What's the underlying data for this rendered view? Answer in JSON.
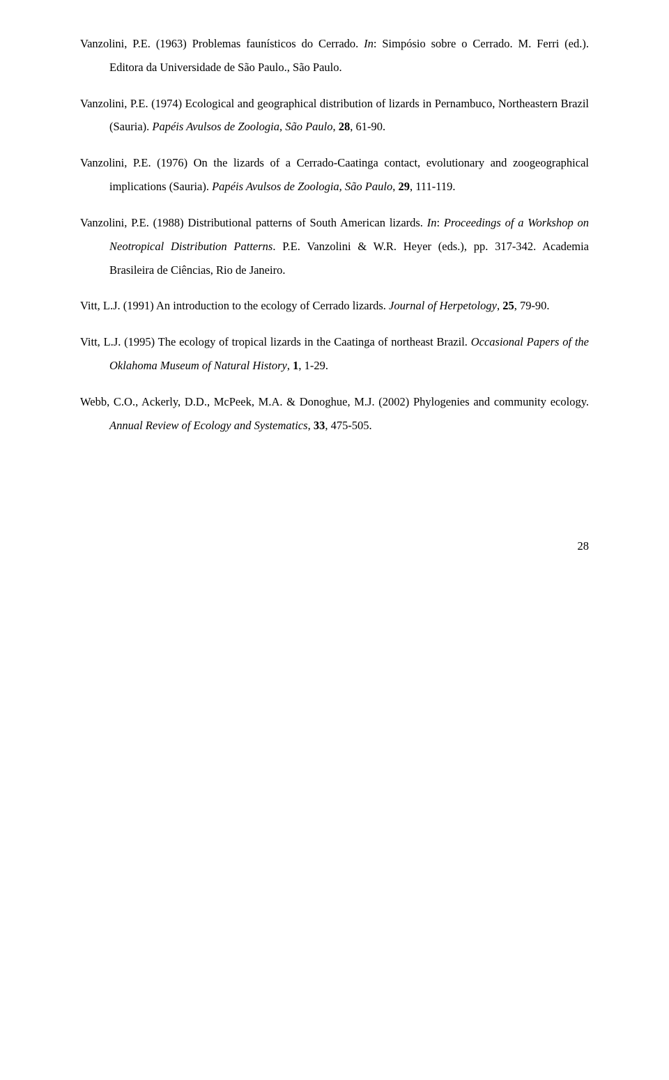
{
  "references": [
    {
      "r1_part1": "Vanzolini, P.E. (1963) Problemas faunísticos do Cerrado. ",
      "r1_italic1": "In",
      "r1_part2": ": Simpósio sobre o Cerrado. M. Ferri (ed.). Editora da Universidade de São Paulo., São Paulo."
    },
    {
      "r2_part1": "Vanzolini, P.E. (1974) Ecological and geographical distribution of lizards in Pernambuco, Northeastern Brazil (Sauria). ",
      "r2_italic1": "Papéis Avulsos de Zoologia, São Paulo",
      "r2_part2": ", ",
      "r2_bold1": "28",
      "r2_part3": ", 61-90."
    },
    {
      "r3_part1": "Vanzolini, P.E. (1976) On the lizards of a Cerrado-Caatinga contact, evolutionary and zoogeographical implications (Sauria). ",
      "r3_italic1": "Papéis Avulsos de Zoologia, São Paulo",
      "r3_part2": ", ",
      "r3_bold1": "29",
      "r3_part3": ", 111-119."
    },
    {
      "r4_part1": "Vanzolini, P.E. (1988) Distributional patterns of South American lizards. ",
      "r4_italic1": "In",
      "r4_part2": ": ",
      "r4_italic2": "Proceedings of a Workshop on Neotropical Distribution Patterns",
      "r4_part3": ". P.E. Vanzolini & W.R. Heyer (eds.), pp. 317-342. Academia Brasileira de Ciências, Rio de Janeiro."
    },
    {
      "r5_part1": "Vitt, L.J. (1991) An introduction to the ecology of Cerrado lizards. ",
      "r5_italic1": "Journal of Herpetology",
      "r5_part2": ", ",
      "r5_bold1": "25",
      "r5_part3": ", 79-90."
    },
    {
      "r6_part1": "Vitt, L.J. (1995) The ecology of tropical lizards in the Caatinga of northeast Brazil. ",
      "r6_italic1": "Occasional Papers of the Oklahoma Museum of Natural History",
      "r6_part2": ", ",
      "r6_bold1": "1",
      "r6_part3": ", 1-29."
    },
    {
      "r7_part1": "Webb, C.O., Ackerly, D.D., McPeek, M.A. & Donoghue, M.J. (2002) Phylogenies and community ecology. ",
      "r7_italic1": "Annual Review of Ecology and Systematics",
      "r7_part2": ", ",
      "r7_bold1": "33",
      "r7_part3": ", 475-505."
    }
  ],
  "pageNumber": "28"
}
